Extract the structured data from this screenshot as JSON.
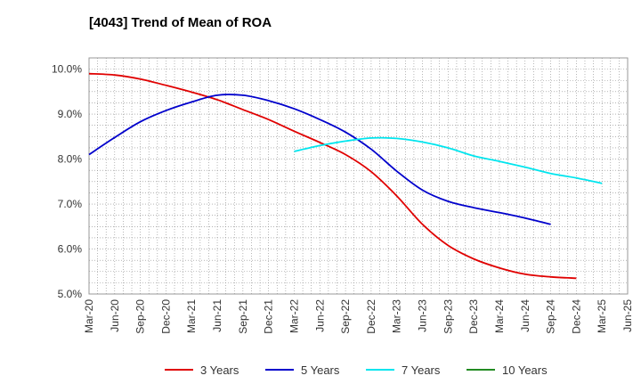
{
  "chart_data": {
    "type": "line",
    "title": "[4043]  Trend of Mean of ROA",
    "xlabel": "",
    "ylabel": "",
    "ylim": [
      5.0,
      10.25
    ],
    "y_ticks": [
      5.0,
      6.0,
      7.0,
      8.0,
      9.0,
      10.0
    ],
    "y_tick_labels": [
      "5.0%",
      "6.0%",
      "7.0%",
      "8.0%",
      "9.0%",
      "10.0%"
    ],
    "x_tick_labels": [
      "Mar-20",
      "Jun-20",
      "Sep-20",
      "Dec-20",
      "Mar-21",
      "Jun-21",
      "Sep-21",
      "Dec-21",
      "Mar-22",
      "Jun-22",
      "Sep-22",
      "Dec-22",
      "Mar-23",
      "Jun-23",
      "Sep-23",
      "Dec-23",
      "Mar-24",
      "Jun-24",
      "Sep-24",
      "Dec-24",
      "Mar-25",
      "Jun-25"
    ],
    "grid": true,
    "legend_position": "bottom",
    "series": [
      {
        "name": "3 Years",
        "color": "#e00000",
        "start_index": 0,
        "values": [
          9.9,
          9.87,
          9.78,
          9.64,
          9.49,
          9.32,
          9.1,
          8.88,
          8.62,
          8.37,
          8.1,
          7.72,
          7.18,
          6.55,
          6.08,
          5.78,
          5.58,
          5.44,
          5.38,
          5.35
        ]
      },
      {
        "name": "5 Years",
        "color": "#0000cc",
        "start_index": 0,
        "values": [
          8.1,
          8.48,
          8.83,
          9.08,
          9.27,
          9.42,
          9.42,
          9.3,
          9.12,
          8.88,
          8.6,
          8.22,
          7.73,
          7.31,
          7.06,
          6.92,
          6.81,
          6.69,
          6.55
        ]
      },
      {
        "name": "7 Years",
        "color": "#00e5ee",
        "start_index": 8,
        "values": [
          8.17,
          8.3,
          8.4,
          8.47,
          8.46,
          8.38,
          8.25,
          8.07,
          7.95,
          7.82,
          7.68,
          7.58,
          7.46
        ]
      },
      {
        "name": "10 Years",
        "color": "#228b22",
        "start_index": 0,
        "values": []
      }
    ]
  }
}
